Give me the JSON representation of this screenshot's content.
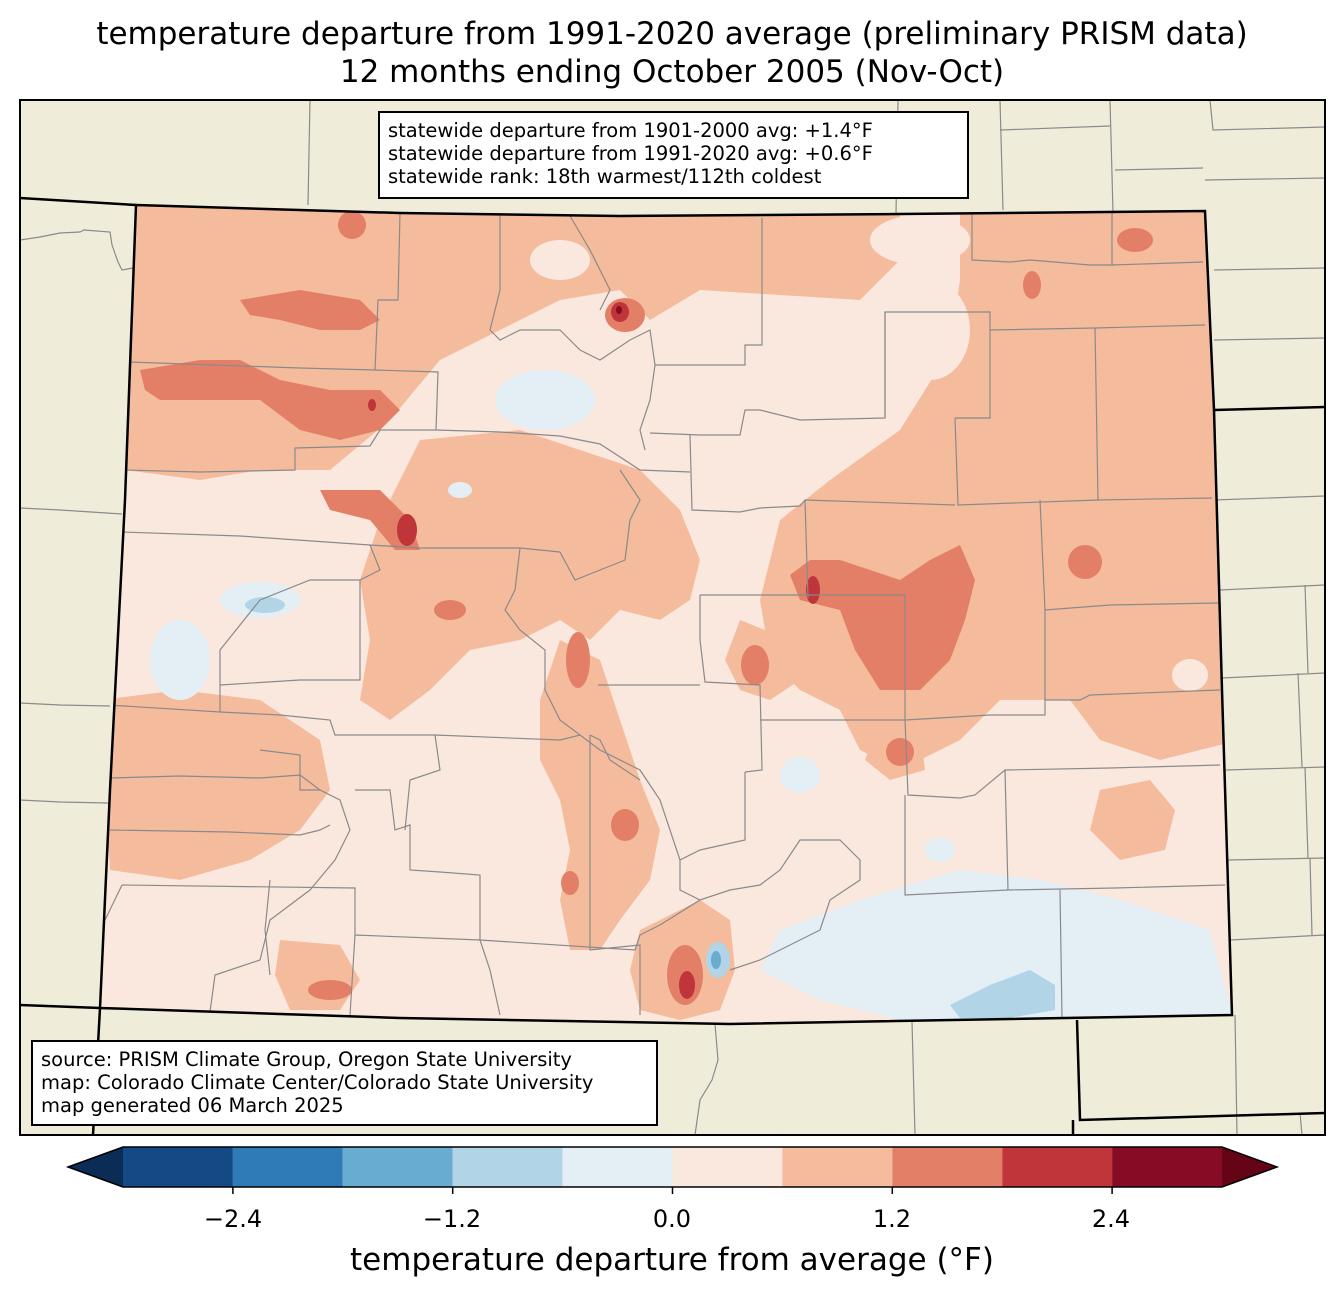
{
  "title": {
    "line1": "temperature departure from 1991-2020 average (preliminary PRISM data)",
    "line2": "12 months ending October 2005 (Nov-Oct)"
  },
  "stats": {
    "line1": "statewide departure from 1901-2000 avg: +1.4°F",
    "line2": "statewide departure from 1991-2020 avg: +0.6°F",
    "line3": "statewide rank: 18th warmest/112th coldest"
  },
  "source": {
    "line1": "source: PRISM Climate Group, Oregon State University",
    "line2": "map: Colorado Climate Center/Colorado State University",
    "line3": "map generated 06 March 2025"
  },
  "colorbar": {
    "label": "temperature departure from average (°F)",
    "ticks": [
      "−2.4",
      "−1.2",
      "0.0",
      "1.2",
      "2.4"
    ],
    "bins": [
      {
        "from": -3.0,
        "to": -2.4,
        "color": "#134a86"
      },
      {
        "from": -2.4,
        "to": -1.8,
        "color": "#2f7bb8"
      },
      {
        "from": -1.8,
        "to": -1.2,
        "color": "#69acd1"
      },
      {
        "from": -1.2,
        "to": -0.6,
        "color": "#b1d4e7"
      },
      {
        "from": -0.6,
        "to": 0.0,
        "color": "#e4eef5"
      },
      {
        "from": 0.0,
        "to": 0.6,
        "color": "#fae8de"
      },
      {
        "from": 0.6,
        "to": 1.2,
        "color": "#f5bb9d"
      },
      {
        "from": 1.2,
        "to": 1.8,
        "color": "#e37f67"
      },
      {
        "from": 1.8,
        "to": 2.4,
        "color": "#bf353a"
      },
      {
        "from": 2.4,
        "to": 3.0,
        "color": "#870b24"
      }
    ],
    "under_color": "#0b2c55",
    "over_color": "#650417"
  },
  "colors": {
    "land": "#efedda",
    "county_line": "#8a8a8a",
    "state_line": "#000000"
  }
}
